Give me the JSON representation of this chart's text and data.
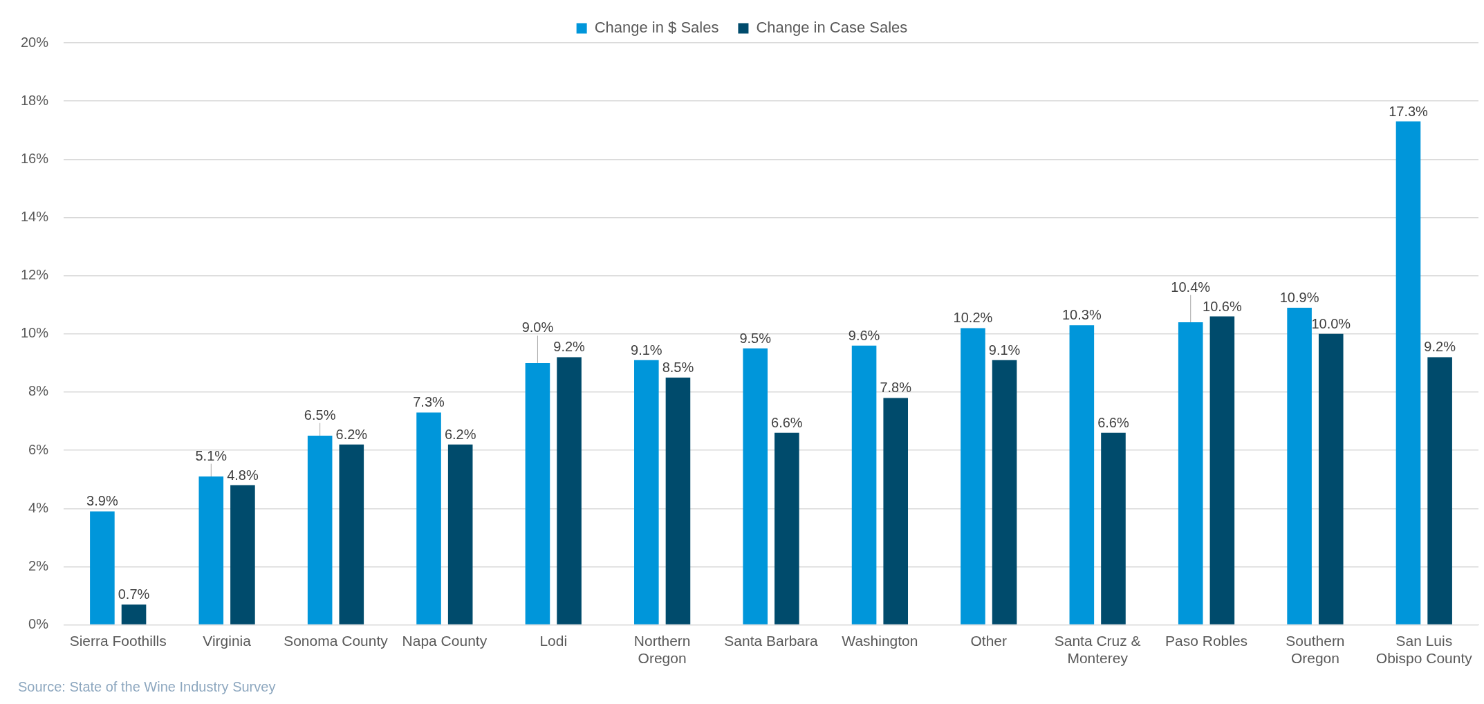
{
  "chart_data": {
    "type": "bar",
    "categories": [
      "Sierra Foothills",
      "Virginia",
      "Sonoma County",
      "Napa County",
      "Lodi",
      "Northern\nOregon",
      "Santa Barbara",
      "Washington",
      "Other",
      "Santa Cruz &\nMonterey",
      "Paso Robles",
      "Southern\nOregon",
      "San Luis\nObispo County"
    ],
    "series": [
      {
        "name": "Change in $ Sales",
        "color": "#0096da",
        "values": [
          3.9,
          5.1,
          6.5,
          7.3,
          9.0,
          9.1,
          9.5,
          9.6,
          10.2,
          10.3,
          10.4,
          10.9,
          17.3
        ],
        "value_labels": [
          "3.9%",
          "5.1%",
          "6.5%",
          "7.3%",
          "9.0%",
          "9.1%",
          "9.5%",
          "9.6%",
          "10.2%",
          "10.3%",
          "10.4%",
          "10.9%",
          "17.3%"
        ]
      },
      {
        "name": "Change in Case Sales",
        "color": "#004b6c",
        "values": [
          0.7,
          4.8,
          6.2,
          6.2,
          9.2,
          8.5,
          6.6,
          7.8,
          9.1,
          6.6,
          10.6,
          10.0,
          9.2
        ],
        "value_labels": [
          "0.7%",
          "4.8%",
          "6.2%",
          "6.2%",
          "9.2%",
          "8.5%",
          "6.6%",
          "7.8%",
          "9.1%",
          "6.6%",
          "10.6%",
          "10.0%",
          "9.2%"
        ]
      }
    ],
    "ylim": [
      0,
      20
    ],
    "yticks": [
      {
        "value": 0,
        "label": "0%"
      },
      {
        "value": 2,
        "label": "2%"
      },
      {
        "value": 4,
        "label": "4%"
      },
      {
        "value": 6,
        "label": "6%"
      },
      {
        "value": 8,
        "label": "8%"
      },
      {
        "value": 10,
        "label": "10%"
      },
      {
        "value": 12,
        "label": "12%"
      },
      {
        "value": 14,
        "label": "14%"
      },
      {
        "value": 16,
        "label": "16%"
      },
      {
        "value": 18,
        "label": "18%"
      },
      {
        "value": 20,
        "label": "20%"
      }
    ],
    "grid": "y",
    "legend": "top",
    "annotations": [
      "Source: State of the Wine Industry Survey"
    ]
  }
}
